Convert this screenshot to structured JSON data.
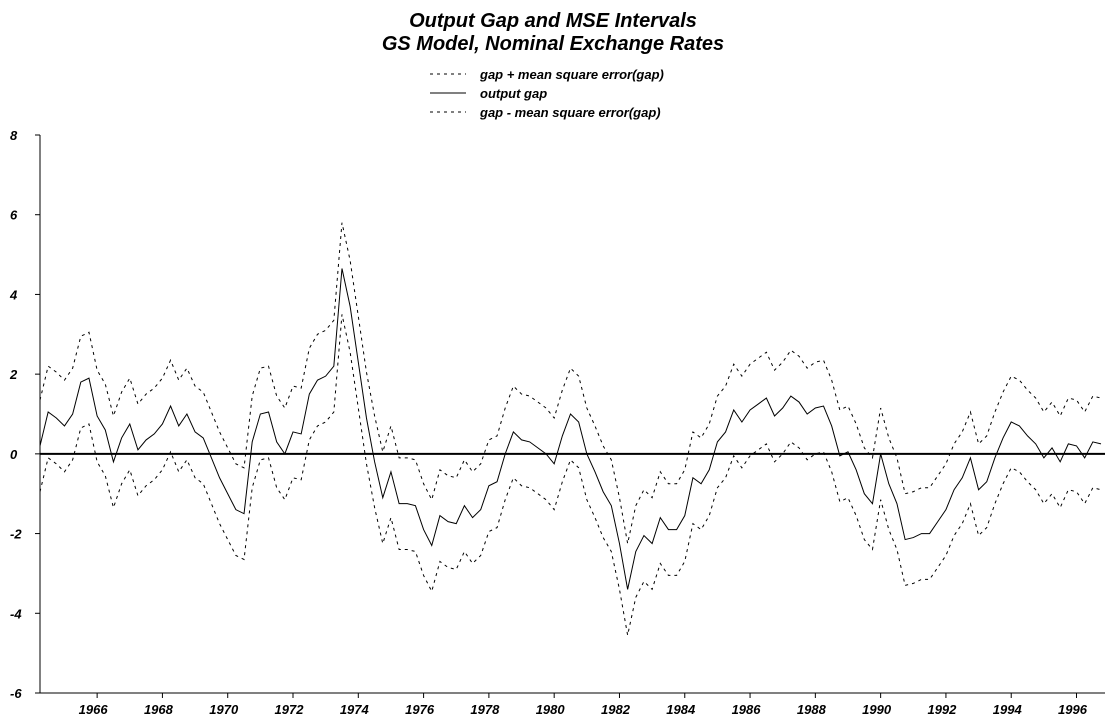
{
  "chart_data": {
    "type": "line",
    "title": "Output Gap and MSE Intervals",
    "subtitle": "GS Model, Nominal Exchange Rates",
    "x": [
      1964.25,
      1964.5,
      1964.75,
      1965,
      1965.25,
      1965.5,
      1965.75,
      1966,
      1966.25,
      1966.5,
      1966.75,
      1967,
      1967.25,
      1967.5,
      1967.75,
      1968,
      1968.25,
      1968.5,
      1968.75,
      1969,
      1969.25,
      1969.5,
      1969.75,
      1970,
      1970.25,
      1970.5,
      1970.75,
      1971,
      1971.25,
      1971.5,
      1971.75,
      1972,
      1972.25,
      1972.5,
      1972.75,
      1973,
      1973.25,
      1973.5,
      1973.75,
      1974,
      1974.25,
      1974.5,
      1974.75,
      1975,
      1975.25,
      1975.5,
      1975.75,
      1976,
      1976.25,
      1976.5,
      1976.75,
      1977,
      1977.25,
      1977.5,
      1977.75,
      1978,
      1978.25,
      1978.5,
      1978.75,
      1979,
      1979.25,
      1979.5,
      1979.75,
      1980,
      1980.25,
      1980.5,
      1980.75,
      1981,
      1981.25,
      1981.5,
      1981.75,
      1982,
      1982.25,
      1982.5,
      1982.75,
      1983,
      1983.25,
      1983.5,
      1983.75,
      1984,
      1984.25,
      1984.5,
      1984.75,
      1985,
      1985.25,
      1985.5,
      1985.75,
      1986,
      1986.25,
      1986.5,
      1986.75,
      1987,
      1987.25,
      1987.5,
      1987.75,
      1988,
      1988.25,
      1988.5,
      1988.75,
      1989,
      1989.25,
      1989.5,
      1989.75,
      1990,
      1990.25,
      1990.5,
      1990.75,
      1991,
      1991.25,
      1991.5,
      1991.75,
      1992,
      1992.25,
      1992.5,
      1992.75,
      1993,
      1993.25,
      1993.5,
      1993.75,
      1994,
      1994.25,
      1994.5,
      1994.75,
      1995,
      1995.25,
      1995.5,
      1995.75,
      1996,
      1996.25,
      1996.5,
      1996.75
    ],
    "series": [
      {
        "name": "gap + mean square error(gap)",
        "color": "#000000",
        "dash": true,
        "values": [
          1.35,
          2.2,
          2.05,
          1.85,
          2.15,
          2.95,
          3.05,
          2.1,
          1.75,
          0.95,
          1.55,
          1.9,
          1.25,
          1.5,
          1.65,
          1.9,
          2.35,
          1.85,
          2.15,
          1.7,
          1.55,
          1.05,
          0.55,
          0.15,
          -0.25,
          -0.35,
          1.45,
          2.15,
          2.2,
          1.45,
          1.15,
          1.7,
          1.65,
          2.65,
          3.0,
          3.1,
          3.35,
          5.8,
          4.85,
          3.45,
          2.05,
          0.95,
          0.05,
          0.7,
          -0.1,
          -0.1,
          -0.15,
          -0.75,
          -1.15,
          -0.4,
          -0.55,
          -0.6,
          -0.15,
          -0.45,
          -0.25,
          0.35,
          0.45,
          1.15,
          1.7,
          1.5,
          1.45,
          1.3,
          1.15,
          0.9,
          1.6,
          2.15,
          1.95,
          1.15,
          0.7,
          0.2,
          -0.15,
          -1.1,
          -2.25,
          -1.3,
          -0.9,
          -1.1,
          -0.45,
          -0.75,
          -0.75,
          -0.4,
          0.55,
          0.4,
          0.75,
          1.45,
          1.7,
          2.25,
          1.95,
          2.25,
          2.4,
          2.55,
          2.1,
          2.3,
          2.6,
          2.45,
          2.15,
          2.3,
          2.35,
          1.85,
          1.1,
          1.2,
          0.75,
          0.15,
          -0.1,
          1.15,
          0.4,
          -0.1,
          -1.0,
          -0.95,
          -0.85,
          -0.85,
          -0.55,
          -0.25,
          0.25,
          0.55,
          1.05,
          0.25,
          0.45,
          1.05,
          1.55,
          1.95,
          1.85,
          1.6,
          1.4,
          1.05,
          1.3,
          0.95,
          1.4,
          1.35,
          1.05,
          1.45,
          1.4
        ]
      },
      {
        "name": "output gap",
        "color": "#000000",
        "dash": false,
        "values": [
          0.2,
          1.05,
          0.9,
          0.7,
          1.0,
          1.8,
          1.9,
          0.95,
          0.6,
          -0.2,
          0.4,
          0.75,
          0.1,
          0.35,
          0.5,
          0.75,
          1.2,
          0.7,
          1.0,
          0.55,
          0.4,
          -0.1,
          -0.6,
          -1.0,
          -1.4,
          -1.5,
          0.3,
          1.0,
          1.05,
          0.3,
          0.0,
          0.55,
          0.5,
          1.5,
          1.85,
          1.95,
          2.2,
          4.65,
          3.7,
          2.3,
          0.9,
          -0.2,
          -1.1,
          -0.45,
          -1.25,
          -1.25,
          -1.3,
          -1.9,
          -2.3,
          -1.55,
          -1.7,
          -1.75,
          -1.3,
          -1.6,
          -1.4,
          -0.8,
          -0.7,
          0.0,
          0.55,
          0.35,
          0.3,
          0.15,
          0.0,
          -0.25,
          0.45,
          1.0,
          0.8,
          0.0,
          -0.45,
          -0.95,
          -1.3,
          -2.25,
          -3.4,
          -2.45,
          -2.05,
          -2.25,
          -1.6,
          -1.9,
          -1.9,
          -1.55,
          -0.6,
          -0.75,
          -0.4,
          0.3,
          0.55,
          1.1,
          0.8,
          1.1,
          1.25,
          1.4,
          0.95,
          1.15,
          1.45,
          1.3,
          1.0,
          1.15,
          1.2,
          0.7,
          -0.05,
          0.05,
          -0.4,
          -1.0,
          -1.25,
          0.0,
          -0.75,
          -1.25,
          -2.15,
          -2.1,
          -2.0,
          -2.0,
          -1.7,
          -1.4,
          -0.9,
          -0.6,
          -0.1,
          -0.9,
          -0.7,
          -0.1,
          0.4,
          0.8,
          0.7,
          0.45,
          0.25,
          -0.1,
          0.15,
          -0.2,
          0.25,
          0.2,
          -0.1,
          0.3,
          0.25
        ]
      },
      {
        "name": "gap - mean square error(gap)",
        "color": "#000000",
        "dash": true,
        "values": [
          -0.95,
          -0.1,
          -0.25,
          -0.45,
          -0.15,
          0.65,
          0.75,
          -0.2,
          -0.55,
          -1.35,
          -0.75,
          -0.4,
          -1.05,
          -0.8,
          -0.65,
          -0.4,
          0.05,
          -0.45,
          -0.15,
          -0.6,
          -0.75,
          -1.25,
          -1.75,
          -2.15,
          -2.55,
          -2.65,
          -0.85,
          -0.15,
          -0.1,
          -0.85,
          -1.15,
          -0.6,
          -0.65,
          0.35,
          0.7,
          0.8,
          1.05,
          3.5,
          2.55,
          1.15,
          -0.25,
          -1.35,
          -2.25,
          -1.6,
          -2.4,
          -2.4,
          -2.45,
          -3.05,
          -3.45,
          -2.7,
          -2.85,
          -2.9,
          -2.45,
          -2.75,
          -2.55,
          -1.95,
          -1.85,
          -1.15,
          -0.6,
          -0.8,
          -0.85,
          -1.0,
          -1.15,
          -1.4,
          -0.7,
          -0.15,
          -0.35,
          -1.15,
          -1.6,
          -2.1,
          -2.45,
          -3.4,
          -4.55,
          -3.6,
          -3.2,
          -3.4,
          -2.75,
          -3.05,
          -3.05,
          -2.7,
          -1.75,
          -1.9,
          -1.55,
          -0.85,
          -0.6,
          -0.05,
          -0.35,
          -0.05,
          0.1,
          0.25,
          -0.2,
          0.0,
          0.3,
          0.15,
          -0.15,
          0.0,
          0.05,
          -0.45,
          -1.2,
          -1.1,
          -1.55,
          -2.15,
          -2.4,
          -1.15,
          -1.9,
          -2.4,
          -3.3,
          -3.25,
          -3.15,
          -3.15,
          -2.85,
          -2.55,
          -2.05,
          -1.75,
          -1.25,
          -2.05,
          -1.85,
          -1.25,
          -0.75,
          -0.35,
          -0.45,
          -0.7,
          -0.9,
          -1.25,
          -1.0,
          -1.35,
          -0.9,
          -0.95,
          -1.25,
          -0.85,
          -0.9
        ]
      }
    ],
    "xlim": [
      1964.25,
      1996.75
    ],
    "xticks": [
      1966,
      1968,
      1970,
      1972,
      1974,
      1976,
      1978,
      1980,
      1982,
      1984,
      1986,
      1988,
      1990,
      1992,
      1994,
      1996
    ],
    "ylim": [
      -6,
      8
    ],
    "yticks": [
      -6,
      -4,
      -2,
      0,
      2,
      4,
      6,
      8
    ],
    "zero_line": true,
    "legend": "top"
  }
}
